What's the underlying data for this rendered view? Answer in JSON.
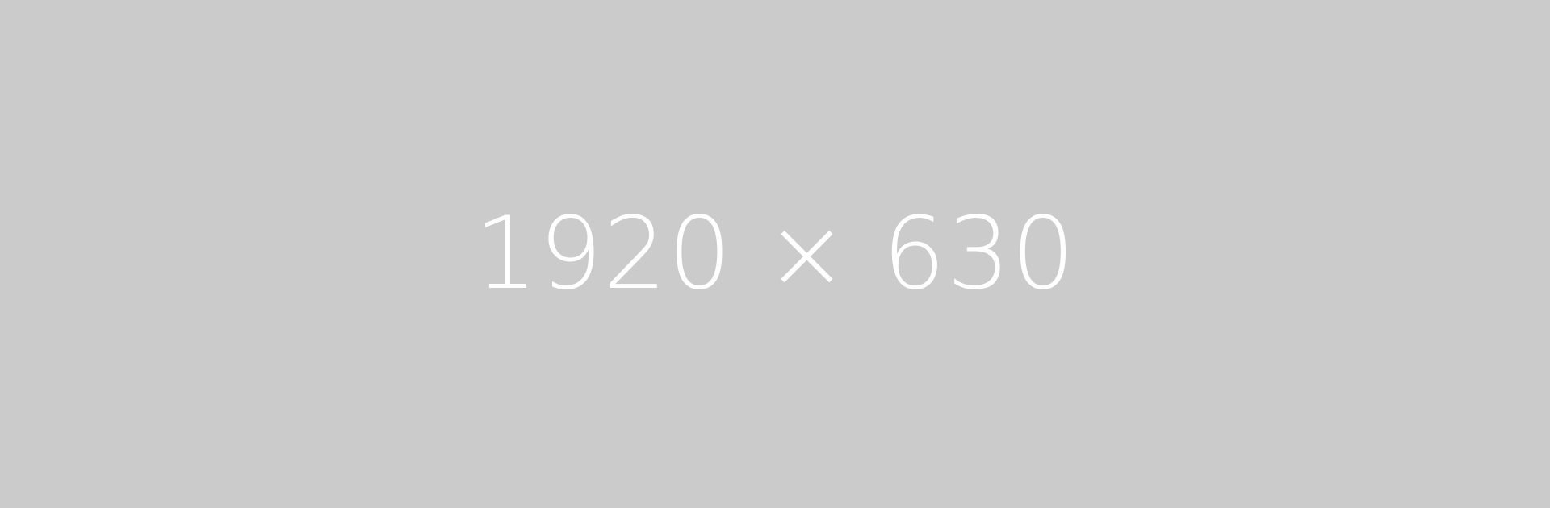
{
  "placeholder": {
    "label": "1920 × 630",
    "background_color": "#cbcbcb",
    "text_color": "#ffffff"
  }
}
